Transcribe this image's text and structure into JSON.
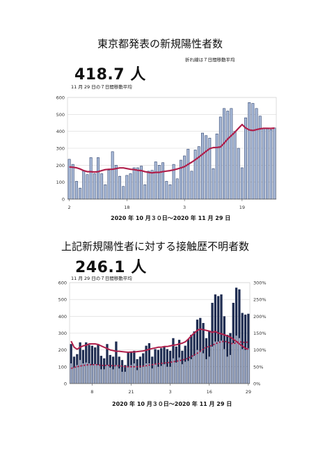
{
  "chart_data": [
    {
      "type": "bar",
      "title": "東京都発表の新規陽性者数",
      "note": "折れ線は７日間移動平均",
      "headline_value": "418.7 人",
      "headline_caption": "11 月 29 日の７日間移動平均",
      "date_range": "2020 年 10 月３０日〜2020 年 11 月 29 日",
      "x_tick_labels": [
        {
          "day": 2,
          "label": "2"
        },
        {
          "day": 18,
          "label": "18"
        },
        {
          "day": 34,
          "label": "3"
        },
        {
          "day": 50,
          "label": "19"
        }
      ],
      "ylim": [
        0,
        600
      ],
      "y_ticks": [
        0,
        100,
        200,
        300,
        400,
        500,
        600
      ],
      "grid": true,
      "bar_color": "#a9bad8",
      "line_color": "#b01f4b",
      "series": [
        {
          "type": "bar",
          "values": [
            235,
            205,
            105,
            65,
            165,
            145,
            245,
            150,
            245,
            150,
            85,
            170,
            280,
            200,
            135,
            75,
            140,
            150,
            185,
            185,
            195,
            85,
            165,
            170,
            220,
            200,
            215,
            105,
            85,
            205,
            120,
            230,
            255,
            295,
            165,
            290,
            310,
            390,
            375,
            360,
            180,
            385,
            485,
            535,
            520,
            535,
            400,
            300,
            185,
            480,
            570,
            565,
            535,
            490,
            420,
            415,
            410,
            420
          ]
        },
        {
          "type": "line",
          "values": [
            190,
            188,
            185,
            178,
            168,
            162,
            162,
            160,
            162,
            168,
            174,
            176,
            176,
            180,
            184,
            184,
            180,
            176,
            174,
            170,
            168,
            162,
            158,
            155,
            158,
            158,
            162,
            165,
            168,
            172,
            178,
            184,
            192,
            205,
            218,
            232,
            248,
            265,
            282,
            298,
            304,
            305,
            308,
            330,
            355,
            375,
            395,
            418,
            440,
            420,
            408,
            405,
            410,
            415,
            418,
            418,
            417,
            419
          ]
        }
      ]
    },
    {
      "type": "bar",
      "title": "上記新規陽性者に対する接触歴不明者数",
      "headline_value": "246.1 人",
      "headline_caption": "11 月 29 日の７日間移動平均",
      "date_range": "2020 年 10 月３０日〜2020 年 11 月 29 日",
      "x_tick_labels": [
        {
          "day": 8,
          "label": "8"
        },
        {
          "day": 21,
          "label": "21"
        },
        {
          "day": 34,
          "label": "3"
        },
        {
          "day": 47,
          "label": "16"
        },
        {
          "day": 60,
          "label": "29"
        }
      ],
      "ylim": [
        0,
        600
      ],
      "y_ticks": [
        0,
        100,
        200,
        300,
        400,
        500,
        600
      ],
      "y2lim": [
        0,
        300
      ],
      "y2_ticks": [
        "0%",
        "50%",
        "100%",
        "150%",
        "200%",
        "250%",
        "300%"
      ],
      "grid": true,
      "total_bar_color": "#1f2d52",
      "unknown_bar_color": "#b9c6df",
      "line_color": "#b01f4b",
      "series": [
        {
          "type": "bar",
          "values": [
            235,
            160,
            175,
            245,
            200,
            245,
            230,
            225,
            215,
            235,
            165,
            150,
            235,
            170,
            160,
            250,
            160,
            140,
            110,
            185,
            185,
            195,
            145,
            160,
            180,
            225,
            240,
            160,
            205,
            200,
            210,
            220,
            205,
            195,
            270,
            220,
            260,
            195,
            225,
            265,
            290,
            310,
            380,
            390,
            360,
            270,
            310,
            480,
            530,
            520,
            530,
            400,
            290,
            300,
            480,
            570,
            560,
            420,
            410,
            415
          ]
        },
        {
          "type": "bar",
          "values": [
            120,
            95,
            110,
            140,
            120,
            125,
            120,
            110,
            115,
            110,
            85,
            85,
            110,
            95,
            85,
            110,
            90,
            70,
            70,
            100,
            110,
            120,
            80,
            95,
            100,
            120,
            120,
            90,
            115,
            100,
            105,
            115,
            100,
            100,
            150,
            125,
            155,
            115,
            130,
            135,
            145,
            165,
            200,
            190,
            180,
            145,
            160,
            220,
            250,
            250,
            255,
            205,
            160,
            170,
            240,
            285,
            270,
            205,
            200,
            210
          ]
        },
        {
          "type": "line",
          "axis": "y2",
          "values": [
            126,
            108,
            102,
            108,
            112,
            114,
            118,
            118,
            118,
            116,
            112,
            108,
            104,
            100,
            98,
            96,
            96,
            95,
            94,
            93,
            94,
            94,
            95,
            96,
            97,
            99,
            102,
            104,
            106,
            108,
            108,
            110,
            110,
            112,
            114,
            115,
            118,
            120,
            124,
            132,
            142,
            150,
            158,
            162,
            160,
            158,
            156,
            152,
            155,
            150,
            148,
            145,
            142,
            138,
            132,
            125,
            118,
            112,
            105,
            102
          ]
        },
        {
          "type": "line",
          "axis": "y2",
          "values": [
            45,
            48,
            50,
            52,
            54,
            55,
            56,
            56,
            56,
            56,
            54,
            54,
            54,
            54,
            53,
            53,
            53,
            52,
            50,
            50,
            50,
            50,
            50,
            51,
            52,
            53,
            55,
            56,
            58,
            59,
            60,
            61,
            62,
            63,
            65,
            66,
            68,
            70,
            72,
            76,
            80,
            85,
            90,
            96,
            102,
            108,
            110,
            114,
            118,
            122,
            124,
            126,
            124,
            120,
            118,
            122,
            125,
            122,
            123,
            123
          ]
        }
      ]
    }
  ]
}
